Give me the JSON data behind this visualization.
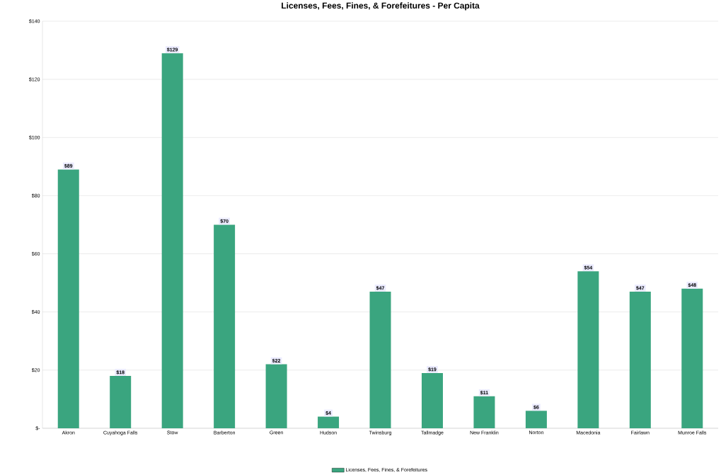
{
  "chart_data": {
    "type": "bar",
    "title": "Licenses, Fees, Fines, & Forefeitures - Per Capita",
    "categories": [
      "Akron",
      "Cuyahoga Falls",
      "Stow",
      "Barberton",
      "Green",
      "Hudson",
      "Twinsburg",
      "Tallmadge",
      "New Franklin",
      "Norton",
      "Macedonia",
      "Fairlawn",
      "Munroe Falls"
    ],
    "series": [
      {
        "name": "Licenses, Fees, Fines, & Forefeitures",
        "color": "#3aa57f",
        "values": [
          89,
          18,
          129,
          70,
          22,
          4,
          47,
          19,
          11,
          6,
          54,
          47,
          48
        ],
        "value_labels": [
          "$89",
          "$18",
          "$129",
          "$70",
          "$22",
          "$4",
          "$47",
          "$19",
          "$11",
          "$6",
          "$54",
          "$47",
          "$48"
        ]
      }
    ],
    "ylim": [
      0,
      140
    ],
    "yticks": [
      {
        "value": 0,
        "label": "$-"
      },
      {
        "value": 20,
        "label": "$20"
      },
      {
        "value": 40,
        "label": "$40"
      },
      {
        "value": 60,
        "label": "$60"
      },
      {
        "value": 80,
        "label": "$80"
      },
      {
        "value": 100,
        "label": "$100"
      },
      {
        "value": 120,
        "label": "$120"
      },
      {
        "value": 140,
        "label": "$140"
      }
    ],
    "grid": "y",
    "legend": "bottom"
  }
}
